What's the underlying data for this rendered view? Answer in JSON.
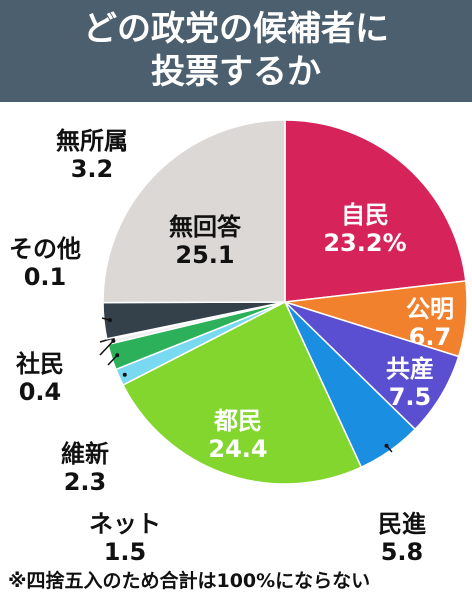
{
  "chart_data": {
    "type": "pie",
    "title": "どの政党の候補者に投票するか",
    "categories": [
      "自民",
      "公明",
      "共産",
      "民進",
      "都民",
      "ネット",
      "維新",
      "社民",
      "その他",
      "無所属",
      "無回答"
    ],
    "values": [
      23.2,
      6.7,
      7.5,
      5.8,
      24.4,
      1.5,
      2.3,
      0.4,
      0.1,
      3.2,
      25.1
    ],
    "value_labels": [
      "23.2%",
      "6.7",
      "7.5",
      "5.8",
      "24.4",
      "1.5",
      "2.3",
      "0.4",
      "0.1",
      "3.2",
      "25.1"
    ],
    "colors": [
      "#d6245a",
      "#f2812e",
      "#5a4fd0",
      "#1a8ee0",
      "#82d62e",
      "#79d9f0",
      "#2cb15a",
      "#eeeeee",
      "#9aa0a6",
      "#34414b",
      "#dbd8d5"
    ],
    "note": "※四捨五入のため合計は100%にならない"
  }
}
